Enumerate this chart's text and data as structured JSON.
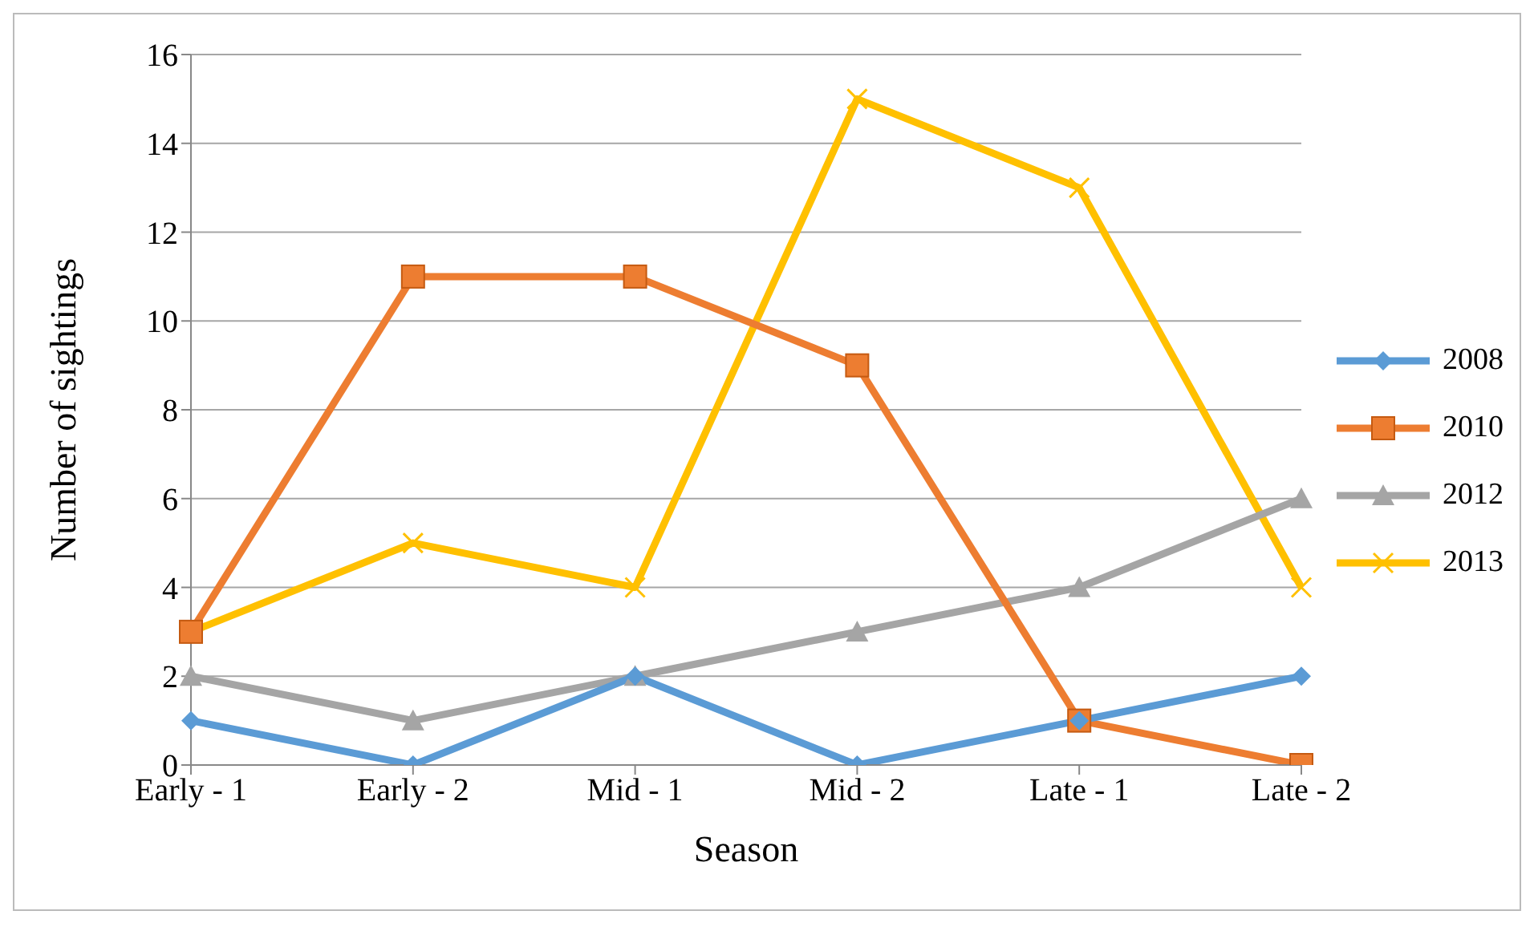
{
  "chart_data": {
    "type": "line",
    "xlabel": "Season",
    "ylabel": "Number of sightings",
    "categories": [
      "Early - 1",
      "Early - 2",
      "Mid - 1",
      "Mid - 2",
      "Late - 1",
      "Late - 2"
    ],
    "series": [
      {
        "name": "2008",
        "color": "#5b9bd5",
        "marker": "diamond",
        "values": [
          1,
          0,
          2,
          0,
          1,
          2
        ]
      },
      {
        "name": "2010",
        "color": "#ed7d31",
        "marker": "square",
        "values": [
          3,
          11,
          11,
          9,
          1,
          0
        ]
      },
      {
        "name": "2012",
        "color": "#a5a5a5",
        "marker": "triangle",
        "values": [
          2,
          1,
          2,
          3,
          4,
          6
        ]
      },
      {
        "name": "2013",
        "color": "#ffc000",
        "marker": "cross",
        "values": [
          3,
          5,
          4,
          15,
          13,
          4
        ]
      }
    ],
    "ylim": [
      0,
      16
    ],
    "yticks": [
      0,
      2,
      4,
      6,
      8,
      10,
      12,
      14,
      16
    ],
    "grid": "y",
    "legend": "right"
  }
}
